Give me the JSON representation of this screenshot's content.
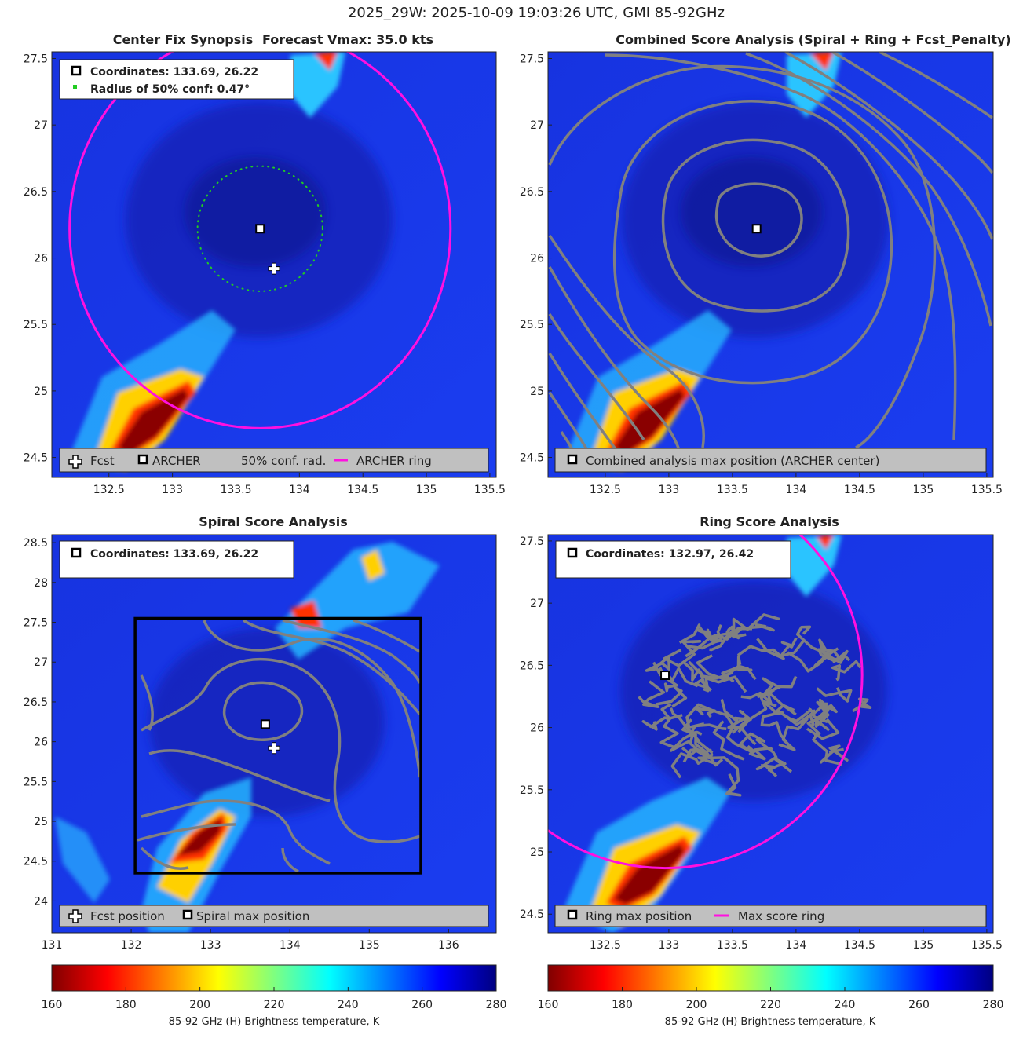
{
  "suptitle": "2025_29W: 2025-10-09 19:03:26 UTC, GMI 85-92GHz",
  "colors": {
    "ring": "#ff10e0",
    "contour": "#808080",
    "conf_dot": "#22cc22",
    "legend_bg": "#c0c0c0",
    "sea": "#1a34e8",
    "deep": "#0e1ca8"
  },
  "colorbar": {
    "label": "85-92 GHz (H) Brightness temperature, K",
    "range": [
      160,
      280
    ],
    "ticks": [
      "160",
      "180",
      "200",
      "220",
      "240",
      "260",
      "280"
    ]
  },
  "chart_data": [
    {
      "type": "heatmap",
      "id": "center-fix",
      "title_left": "Center Fix Synopsis",
      "title_right": "Forecast Vmax: 35.0 kts",
      "xlim": [
        132.05,
        135.55
      ],
      "ylim": [
        24.35,
        27.55
      ],
      "xticks": [
        "132.5",
        "133",
        "133.5",
        "134",
        "134.5",
        "135",
        "135.5"
      ],
      "yticks": [
        "24.5",
        "25",
        "25.5",
        "26",
        "26.5",
        "27",
        "27.5"
      ],
      "info": [
        {
          "text": "Coordinates: 133.69, 26.22",
          "marker": "archer"
        },
        {
          "text": "Radius of 50% conf: 0.47°",
          "marker": "green-dot"
        }
      ],
      "legend": [
        {
          "text": "Fcst",
          "marker": "fcst"
        },
        {
          "text": "ARCHER",
          "marker": "archer"
        },
        {
          "text": "50% conf. rad.",
          "marker": "none"
        },
        {
          "text": "ARCHER ring",
          "marker": "ring"
        }
      ],
      "archer_center": [
        133.69,
        26.22
      ],
      "forecast_position": [
        133.8,
        25.92
      ],
      "conf_radius_deg": 0.47,
      "ring_center": [
        133.69,
        26.22
      ],
      "ring_radius_deg": 1.5
    },
    {
      "type": "heatmap",
      "id": "combined-score",
      "title": "Combined Score Analysis (Spiral + Ring + Fcst_Penalty)",
      "xlim": [
        132.05,
        135.55
      ],
      "ylim": [
        24.35,
        27.55
      ],
      "xticks": [
        "132.5",
        "133",
        "133.5",
        "134",
        "134.5",
        "135",
        "135.5"
      ],
      "yticks": [
        "24.5",
        "25",
        "25.5",
        "26",
        "26.5",
        "27",
        "27.5"
      ],
      "legend": [
        {
          "text": "Combined analysis max position (ARCHER center)",
          "marker": "archer"
        }
      ],
      "archer_center": [
        133.69,
        26.22
      ]
    },
    {
      "type": "heatmap",
      "id": "spiral-score",
      "title": "Spiral Score Analysis",
      "xlim": [
        131.0,
        136.6
      ],
      "ylim": [
        23.6,
        28.6
      ],
      "xticks": [
        "131",
        "132",
        "133",
        "134",
        "135",
        "136"
      ],
      "yticks": [
        "24",
        "24.5",
        "25",
        "25.5",
        "26",
        "26.5",
        "27",
        "27.5",
        "28",
        "28.5"
      ],
      "info": [
        {
          "text": "Coordinates: 133.69, 26.22",
          "marker": "archer"
        }
      ],
      "legend": [
        {
          "text": "Fcst position",
          "marker": "fcst"
        },
        {
          "text": "Spiral max position",
          "marker": "archer"
        }
      ],
      "spiral_max": [
        133.69,
        26.22
      ],
      "forecast_position": [
        133.8,
        25.92
      ],
      "search_box": [
        132.05,
        24.35,
        135.65,
        27.55
      ]
    },
    {
      "type": "heatmap",
      "id": "ring-score",
      "title": "Ring Score Analysis",
      "xlim": [
        132.05,
        135.55
      ],
      "ylim": [
        24.35,
        27.55
      ],
      "xticks": [
        "132.5",
        "133",
        "133.5",
        "134",
        "134.5",
        "135",
        "135.5"
      ],
      "yticks": [
        "24.5",
        "25",
        "25.5",
        "26",
        "26.5",
        "27",
        "27.5"
      ],
      "info": [
        {
          "text": "Coordinates: 132.97, 26.42",
          "marker": "archer"
        }
      ],
      "legend": [
        {
          "text": "Ring max position",
          "marker": "archer"
        },
        {
          "text": "Max score ring",
          "marker": "ring"
        }
      ],
      "ring_max": [
        132.97,
        26.42
      ],
      "ring_radius_deg": 1.55
    }
  ]
}
